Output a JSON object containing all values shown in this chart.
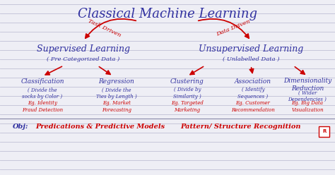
{
  "title": "Classical Machine Learning",
  "background_color": "#eeeef5",
  "line_color": "#c0c0d5",
  "blue_color": "#3030a0",
  "red_color": "#cc0000",
  "supervised_label": "Supervised Learning",
  "supervised_sub": "( Pre Categorized Data )",
  "unsupervised_label": "Unsupervised Learning",
  "unsupervised_sub": "( Unlabelled Data )",
  "task_driven": "Task Driven",
  "data_driven": "Data Driven",
  "classification": "Classification",
  "classification_sub": "( Divide the\nsocks by Color )",
  "classification_eg": "Eg. Identity\nFraud Detection",
  "regression": "Regression",
  "regression_sub": "( Divide the\nTies by Length )",
  "regression_eg": "Eg. Market\nForecasting",
  "clustering": "Clustering",
  "clustering_sub": "( Divide by\nSimilarity )",
  "clustering_eg": "Eg. Targeted\nMarketing",
  "association": "Association",
  "association_sub": "( Identify\nSequences )",
  "association_eg": "Eg. Customer\nRecommendation",
  "dimensionality": "Dimensionality\nReduction",
  "dimensionality_sub": "( Wider\nDependencies )",
  "dimensionality_eg": "Eg. Big Data\nVisualization",
  "obj_label": "Obj:",
  "obj_supervised": "Predications & Predictive Models",
  "obj_unsupervised": "Pattern/ Structure Recognition"
}
